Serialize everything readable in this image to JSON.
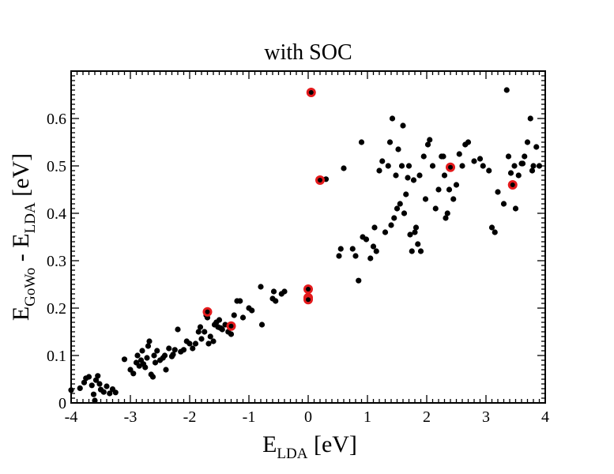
{
  "chart_data": {
    "type": "scatter",
    "title": "with SOC",
    "xlabel": {
      "main": "E",
      "sub": "LDA",
      "unit": " [eV]"
    },
    "ylabel": {
      "main1": "E",
      "sub1": "GoWo",
      "mid": " - E",
      "sub2": "LDA",
      "unit": " [eV]"
    },
    "xlim": [
      -4,
      4
    ],
    "ylim": [
      0,
      0.7
    ],
    "xticks": [
      "-4",
      "-3",
      "-2",
      "-1",
      "0",
      "1",
      "2",
      "3",
      "4"
    ],
    "yticks": [
      "0",
      "0.1",
      "0.2",
      "0.3",
      "0.4",
      "0.5",
      "0.6"
    ],
    "grid": false,
    "colors": {
      "black_points": "#000000",
      "highlight": "#e41a1c"
    },
    "series": [
      {
        "color": "#000000",
        "points": [
          [
            -4.0,
            0.027
          ],
          [
            -3.85,
            0.031
          ],
          [
            -3.78,
            0.043
          ],
          [
            -3.75,
            0.052
          ],
          [
            -3.7,
            0.055
          ],
          [
            -3.65,
            0.037
          ],
          [
            -3.62,
            0.018
          ],
          [
            -3.6,
            0.005
          ],
          [
            -3.58,
            0.048
          ],
          [
            -3.55,
            0.057
          ],
          [
            -3.52,
            0.04
          ],
          [
            -3.5,
            0.028
          ],
          [
            -3.45,
            0.023
          ],
          [
            -3.4,
            0.035
          ],
          [
            -3.35,
            0.02
          ],
          [
            -3.3,
            0.029
          ],
          [
            -3.25,
            0.022
          ],
          [
            -3.1,
            0.092
          ],
          [
            -3.0,
            0.07
          ],
          [
            -2.95,
            0.062
          ],
          [
            -2.9,
            0.085
          ],
          [
            -2.88,
            0.1
          ],
          [
            -2.85,
            0.078
          ],
          [
            -2.82,
            0.09
          ],
          [
            -2.8,
            0.11
          ],
          [
            -2.78,
            0.082
          ],
          [
            -2.75,
            0.075
          ],
          [
            -2.72,
            0.095
          ],
          [
            -2.7,
            0.12
          ],
          [
            -2.68,
            0.13
          ],
          [
            -2.65,
            0.06
          ],
          [
            -2.62,
            0.055
          ],
          [
            -2.6,
            0.1
          ],
          [
            -2.58,
            0.085
          ],
          [
            -2.55,
            0.11
          ],
          [
            -2.5,
            0.09
          ],
          [
            -2.45,
            0.095
          ],
          [
            -2.42,
            0.1
          ],
          [
            -2.4,
            0.07
          ],
          [
            -2.35,
            0.115
          ],
          [
            -2.3,
            0.098
          ],
          [
            -2.28,
            0.102
          ],
          [
            -2.25,
            0.112
          ],
          [
            -2.2,
            0.155
          ],
          [
            -2.15,
            0.108
          ],
          [
            -2.1,
            0.112
          ],
          [
            -2.05,
            0.13
          ],
          [
            -2.0,
            0.125
          ],
          [
            -1.95,
            0.115
          ],
          [
            -1.9,
            0.125
          ],
          [
            -1.85,
            0.15
          ],
          [
            -1.82,
            0.16
          ],
          [
            -1.8,
            0.135
          ],
          [
            -1.75,
            0.15
          ],
          [
            -1.72,
            0.185
          ],
          [
            -1.7,
            0.18
          ],
          [
            -1.68,
            0.125
          ],
          [
            -1.65,
            0.14
          ],
          [
            -1.6,
            0.13
          ],
          [
            -1.58,
            0.165
          ],
          [
            -1.55,
            0.17
          ],
          [
            -1.52,
            0.16
          ],
          [
            -1.5,
            0.175
          ],
          [
            -1.48,
            0.158
          ],
          [
            -1.45,
            0.155
          ],
          [
            -1.4,
            0.165
          ],
          [
            -1.35,
            0.15
          ],
          [
            -1.3,
            0.145
          ],
          [
            -1.25,
            0.185
          ],
          [
            -1.2,
            0.215
          ],
          [
            -1.15,
            0.215
          ],
          [
            -1.1,
            0.18
          ],
          [
            -1.0,
            0.2
          ],
          [
            -0.95,
            0.195
          ],
          [
            -0.8,
            0.245
          ],
          [
            -0.78,
            0.165
          ],
          [
            -0.6,
            0.22
          ],
          [
            -0.58,
            0.235
          ],
          [
            -0.55,
            0.215
          ],
          [
            -0.45,
            0.23
          ],
          [
            -0.4,
            0.235
          ],
          [
            0.3,
            0.472
          ],
          [
            0.6,
            0.495
          ],
          [
            0.52,
            0.31
          ],
          [
            0.55,
            0.325
          ],
          [
            0.75,
            0.325
          ],
          [
            0.8,
            0.31
          ],
          [
            0.85,
            0.258
          ],
          [
            0.9,
            0.55
          ],
          [
            0.92,
            0.35
          ],
          [
            0.98,
            0.345
          ],
          [
            1.05,
            0.305
          ],
          [
            1.1,
            0.33
          ],
          [
            1.12,
            0.37
          ],
          [
            1.15,
            0.32
          ],
          [
            1.2,
            0.49
          ],
          [
            1.25,
            0.51
          ],
          [
            1.3,
            0.36
          ],
          [
            1.35,
            0.5
          ],
          [
            1.38,
            0.55
          ],
          [
            1.4,
            0.375
          ],
          [
            1.42,
            0.6
          ],
          [
            1.45,
            0.39
          ],
          [
            1.48,
            0.48
          ],
          [
            1.5,
            0.41
          ],
          [
            1.52,
            0.535
          ],
          [
            1.55,
            0.42
          ],
          [
            1.58,
            0.5
          ],
          [
            1.6,
            0.585
          ],
          [
            1.62,
            0.4
          ],
          [
            1.65,
            0.44
          ],
          [
            1.68,
            0.475
          ],
          [
            1.7,
            0.5
          ],
          [
            1.72,
            0.355
          ],
          [
            1.75,
            0.32
          ],
          [
            1.78,
            0.47
          ],
          [
            1.8,
            0.36
          ],
          [
            1.82,
            0.37
          ],
          [
            1.85,
            0.335
          ],
          [
            1.88,
            0.48
          ],
          [
            1.9,
            0.32
          ],
          [
            1.95,
            0.52
          ],
          [
            1.98,
            0.43
          ],
          [
            2.02,
            0.545
          ],
          [
            2.05,
            0.555
          ],
          [
            2.1,
            0.5
          ],
          [
            2.15,
            0.41
          ],
          [
            2.2,
            0.45
          ],
          [
            2.25,
            0.52
          ],
          [
            2.28,
            0.52
          ],
          [
            2.3,
            0.48
          ],
          [
            2.32,
            0.39
          ],
          [
            2.35,
            0.4
          ],
          [
            2.38,
            0.45
          ],
          [
            2.45,
            0.43
          ],
          [
            2.5,
            0.46
          ],
          [
            2.55,
            0.525
          ],
          [
            2.6,
            0.5
          ],
          [
            2.65,
            0.545
          ],
          [
            2.7,
            0.55
          ],
          [
            2.8,
            0.51
          ],
          [
            2.9,
            0.515
          ],
          [
            2.95,
            0.5
          ],
          [
            3.05,
            0.49
          ],
          [
            3.1,
            0.37
          ],
          [
            3.15,
            0.36
          ],
          [
            3.2,
            0.445
          ],
          [
            3.3,
            0.42
          ],
          [
            3.35,
            0.66
          ],
          [
            3.38,
            0.52
          ],
          [
            3.42,
            0.485
          ],
          [
            3.48,
            0.5
          ],
          [
            3.5,
            0.41
          ],
          [
            3.55,
            0.48
          ],
          [
            3.6,
            0.505
          ],
          [
            3.62,
            0.505
          ],
          [
            3.65,
            0.52
          ],
          [
            3.7,
            0.55
          ],
          [
            3.75,
            0.6
          ],
          [
            3.78,
            0.49
          ],
          [
            3.8,
            0.5
          ],
          [
            3.85,
            0.54
          ],
          [
            3.9,
            0.5
          ]
        ]
      },
      {
        "color": "#e41a1c",
        "points": [
          [
            0.05,
            0.655
          ],
          [
            0.2,
            0.47
          ],
          [
            2.4,
            0.497
          ],
          [
            3.45,
            0.46
          ],
          [
            -1.7,
            0.192
          ],
          [
            -1.3,
            0.162
          ],
          [
            0.0,
            0.24
          ],
          [
            0.0,
            0.222
          ],
          [
            0.0,
            0.218
          ]
        ]
      }
    ]
  }
}
